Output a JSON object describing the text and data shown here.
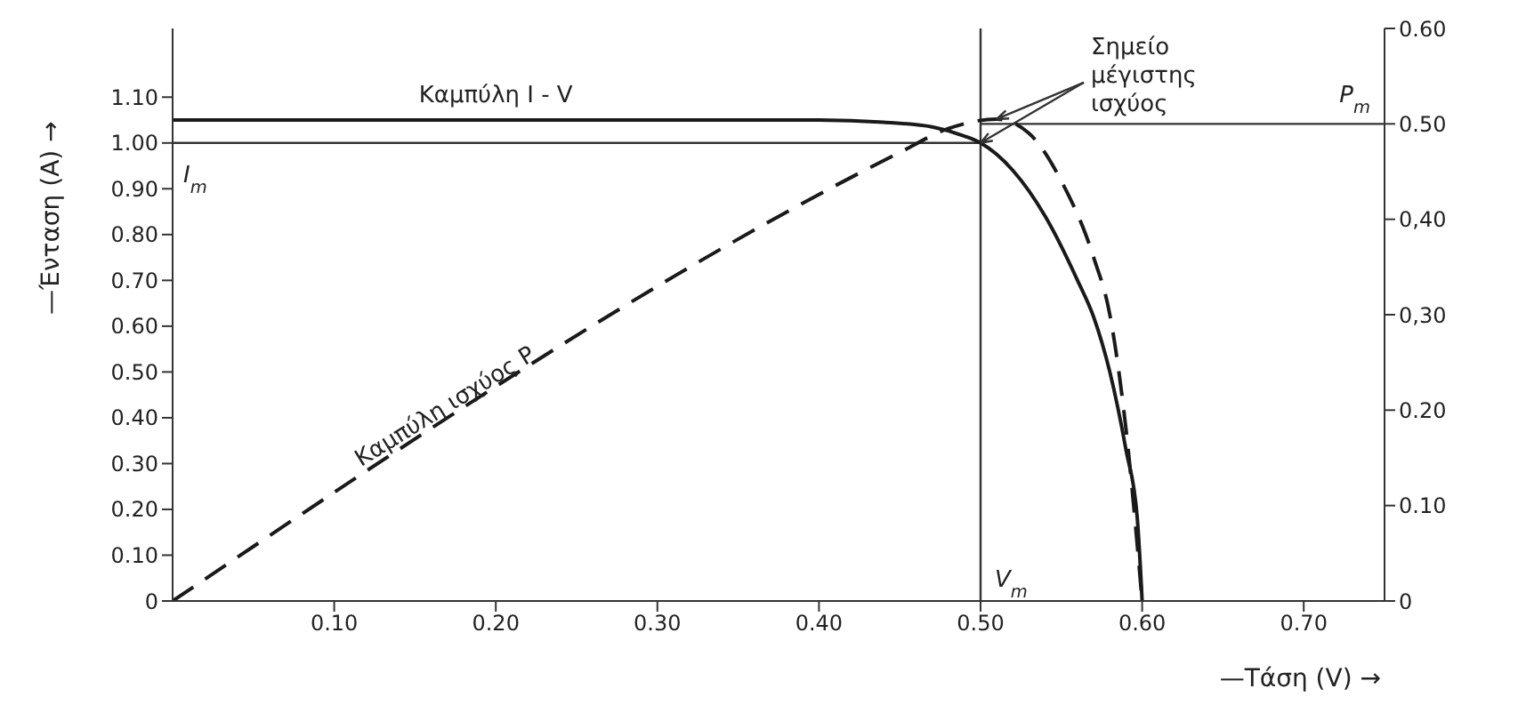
{
  "chart_data": {
    "type": "line",
    "xlabel": "—Τάση (V) →",
    "ylabel": "—Ένταση (A) →",
    "xlim": [
      0,
      0.75
    ],
    "xticks": [
      {
        "value": 0.1,
        "label": "0.10"
      },
      {
        "value": 0.2,
        "label": "0.20"
      },
      {
        "value": 0.3,
        "label": "0.30"
      },
      {
        "value": 0.4,
        "label": "0.40"
      },
      {
        "value": 0.5,
        "label": "0.50"
      },
      {
        "value": 0.6,
        "label": "0.60"
      },
      {
        "value": 0.7,
        "label": "0.70"
      }
    ],
    "ylim": [
      0,
      1.25
    ],
    "yticks": [
      0,
      {
        "value": 0.1,
        "label": "0.10"
      },
      {
        "value": 0.2,
        "label": "0.20"
      },
      {
        "value": 0.3,
        "label": "0.30"
      },
      {
        "value": 0.4,
        "label": "0.40"
      },
      {
        "value": 0.5,
        "label": "0.50"
      },
      {
        "value": 0.6,
        "label": "0.60"
      },
      {
        "value": 0.7,
        "label": "0.70"
      },
      {
        "value": 0.8,
        "label": "0.80"
      },
      {
        "value": 0.9,
        "label": "0.90"
      },
      {
        "value": 1.0,
        "label": "1.00"
      },
      {
        "value": 1.1,
        "label": "1.10"
      }
    ],
    "y2lim": [
      0,
      0.6
    ],
    "y2ticks": [
      0,
      {
        "value": 0.1,
        "label": "0.10"
      },
      {
        "value": 0.2,
        "label": "0.20"
      },
      {
        "value": 0.3,
        "label": "0,30"
      },
      {
        "value": 0.4,
        "label": "0,40"
      },
      {
        "value": 0.5,
        "label": "0.50"
      },
      {
        "value": 0.6,
        "label": "0.60"
      }
    ],
    "marker": "none",
    "series": [
      {
        "color": "#1a1a1a",
        "line_style": "solid",
        "x": [
          0,
          0.4,
          0.44,
          0.47,
          0.49,
          0.5,
          0.52,
          0.54,
          0.56,
          0.57,
          0.58,
          0.59,
          0.597,
          0.6
        ],
        "values": [
          1.05,
          1.05,
          1.045,
          1.035,
          1.015,
          1.0,
          0.94,
          0.84,
          0.7,
          0.62,
          0.5,
          0.33,
          0.18,
          0
        ]
      },
      {
        "color": "#1a1a1a",
        "line_style": "dashed",
        "axis": "y2",
        "x": [
          0,
          0.45,
          0.48,
          0.51,
          0.53,
          0.55,
          0.57,
          0.58,
          0.59,
          0.6
        ],
        "values": [
          0,
          0.47,
          0.495,
          0.505,
          0.49,
          0.44,
          0.36,
          0.3,
          0.18,
          0
        ]
      }
    ],
    "ref_lines": [
      {
        "axis": "x",
        "value": 0.5,
        "label": "V$_{m}$"
      },
      {
        "axis": "y",
        "value": 1.0,
        "label": "I$_{m}$"
      },
      {
        "axis": "y2",
        "value": 0.5,
        "label": "P$_{m}$"
      }
    ],
    "annotations": [
      {
        "text": "Καμπύλη I - V",
        "x": 0.2,
        "y": 1.05
      },
      "Καμπύλη ισχύος P",
      {
        "text": "Σημείο μέγιστης ισχύος",
        "x": 0.5,
        "y": 1.0
      }
    ]
  }
}
